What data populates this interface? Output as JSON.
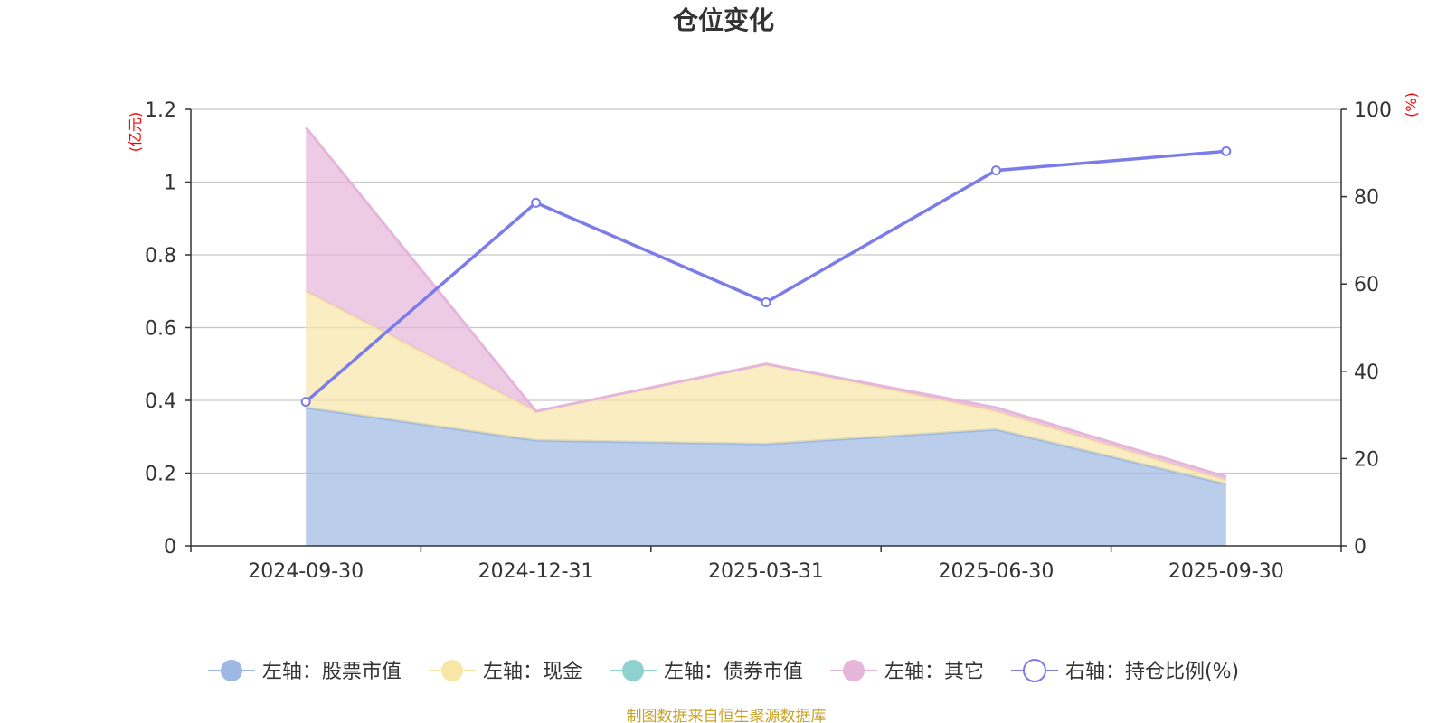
{
  "chart_data": {
    "type": "area",
    "title": "仓位变化",
    "categories": [
      "2024-09-30",
      "2024-12-31",
      "2025-03-31",
      "2025-06-30",
      "2025-09-30"
    ],
    "left_axis": {
      "unit": "(亿元)",
      "ylim": [
        0,
        1.2
      ],
      "ticks": [
        0,
        0.2,
        0.4,
        0.6,
        0.8,
        1,
        1.2
      ],
      "tick_labels": [
        "0",
        "0.2",
        "0.4",
        "0.6",
        "0.8",
        "1",
        "1.2"
      ]
    },
    "right_axis": {
      "unit": "(%)",
      "ylim": [
        0,
        100
      ],
      "ticks": [
        0,
        20,
        40,
        60,
        80,
        100
      ],
      "tick_labels": [
        "0",
        "20",
        "40",
        "60",
        "80",
        "100"
      ]
    },
    "grid": true,
    "legend_position": "bottom",
    "series": [
      {
        "name": "左轴：股票市值",
        "axis": "left",
        "kind": "stacked-area",
        "color": "#9db9e3",
        "values": [
          0.38,
          0.29,
          0.28,
          0.32,
          0.17
        ]
      },
      {
        "name": "左轴：现金",
        "axis": "left",
        "kind": "stacked-area",
        "color": "#f8e6a6",
        "values": [
          0.32,
          0.08,
          0.22,
          0.05,
          0.01
        ]
      },
      {
        "name": "左轴：债券市值",
        "axis": "left",
        "kind": "stacked-area",
        "color": "#8fd1cf",
        "values": [
          0,
          0,
          0,
          0,
          0
        ]
      },
      {
        "name": "左轴：其它",
        "axis": "left",
        "kind": "stacked-area",
        "color": "#e6b5da",
        "values": [
          0.45,
          0.0,
          0.0,
          0.01,
          0.01
        ]
      },
      {
        "name": "右轴：持仓比例(%)",
        "axis": "right",
        "kind": "line",
        "color": "#7b7bea",
        "values": [
          33.0,
          78.6,
          55.8,
          86.0,
          90.4
        ]
      }
    ],
    "source_note": "制图数据来自恒生聚源数据库"
  }
}
